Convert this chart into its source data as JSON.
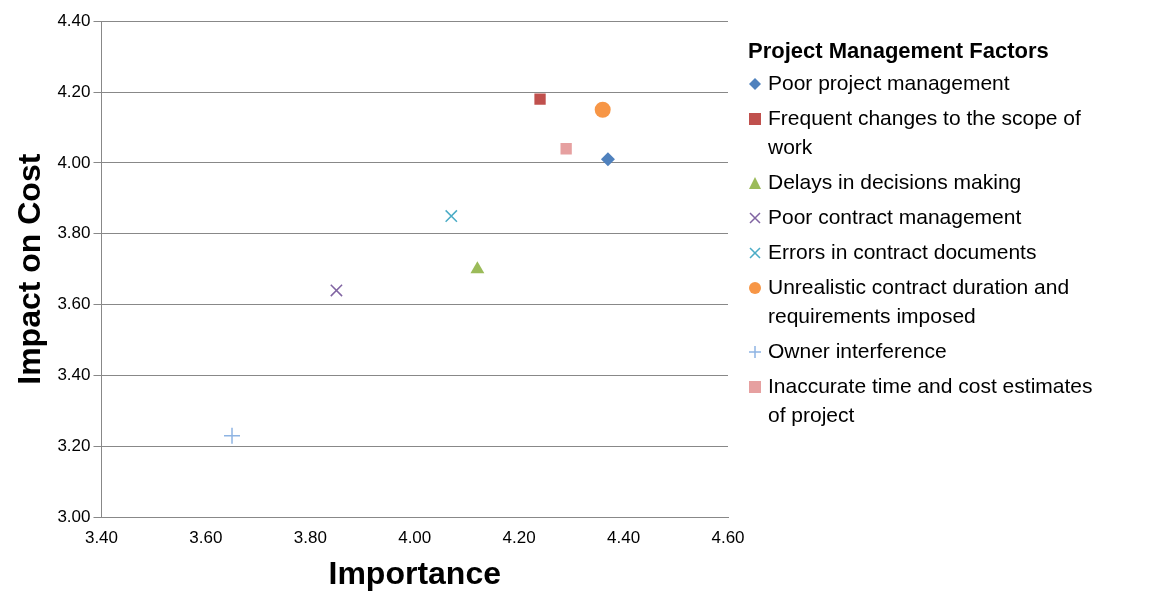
{
  "chart_data": {
    "type": "scatter",
    "xlabel": "Importance",
    "ylabel": "Impact on Cost",
    "legend_title": "Project Management Factors",
    "legend": "right",
    "grid": "y",
    "xlim": [
      3.4,
      4.6
    ],
    "xticks": [
      {
        "value": 3.4,
        "label": "3.40"
      },
      {
        "value": 3.6,
        "label": "3.60"
      },
      {
        "value": 3.8,
        "label": "3.80"
      },
      {
        "value": 4.0,
        "label": "4.00"
      },
      {
        "value": 4.2,
        "label": "4.20"
      },
      {
        "value": 4.4,
        "label": "4.40"
      },
      {
        "value": 4.6,
        "label": "4.60"
      }
    ],
    "ylim": [
      3.0,
      4.4
    ],
    "yticks": [
      {
        "value": 3.0,
        "label": "3.00"
      },
      {
        "value": 3.2,
        "label": "3.20"
      },
      {
        "value": 3.4,
        "label": "3.40"
      },
      {
        "value": 3.6,
        "label": "3.60"
      },
      {
        "value": 3.8,
        "label": "3.80"
      },
      {
        "value": 4.0,
        "label": "4.00"
      },
      {
        "value": 4.2,
        "label": "4.20"
      },
      {
        "value": 4.4,
        "label": "4.40"
      }
    ],
    "series": [
      {
        "name": "Poor project management",
        "color": "#4f81bd",
        "marker": "diamond",
        "x": [
          4.37
        ],
        "values": [
          4.01
        ]
      },
      {
        "name": "Frequent changes to the scope of work",
        "color": "#c0504d",
        "marker": "square",
        "x": [
          4.24
        ],
        "values": [
          4.18
        ]
      },
      {
        "name": "Delays in decisions making",
        "color": "#9bbb59",
        "marker": "triangle",
        "x": [
          4.12
        ],
        "values": [
          3.7
        ]
      },
      {
        "name": "Poor contract management",
        "color": "#8064a2",
        "marker": "cross",
        "x": [
          3.85
        ],
        "values": [
          3.64
        ]
      },
      {
        "name": "Errors in contract documents",
        "color": "#4bacc6",
        "marker": "cross",
        "x": [
          4.07
        ],
        "values": [
          3.85
        ]
      },
      {
        "name": "Unrealistic contract duration and requirements imposed",
        "color": "#f79646",
        "marker": "circle",
        "x": [
          4.36
        ],
        "values": [
          4.15
        ]
      },
      {
        "name": "Owner interference",
        "color": "#8eb4e3",
        "marker": "plus",
        "x": [
          3.65
        ],
        "values": [
          3.23
        ]
      },
      {
        "name": "Inaccurate time and cost estimates of project",
        "color": "#e6a0a0",
        "marker": "square",
        "x": [
          4.29
        ],
        "values": [
          4.04
        ]
      }
    ]
  }
}
